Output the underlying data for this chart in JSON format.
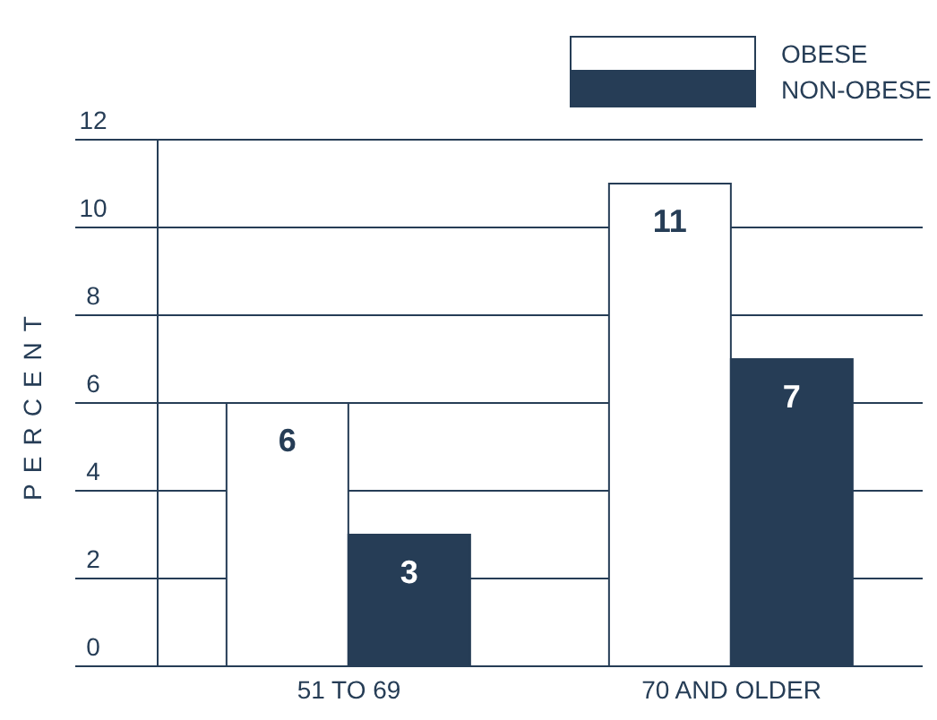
{
  "chart_data": {
    "type": "bar",
    "ylabel": "PERCENT",
    "categories": [
      "51 TO 69",
      "70 AND OLDER"
    ],
    "series": [
      {
        "name": "OBESE",
        "color": "#ffffff",
        "values": [
          6,
          11
        ]
      },
      {
        "name": "NON-OBESE",
        "color": "#263d56",
        "values": [
          3,
          7
        ]
      }
    ],
    "ylim": [
      0,
      12
    ],
    "yticks": [
      0,
      2,
      4,
      6,
      8,
      10,
      12
    ],
    "grid": "y",
    "legend": "top right",
    "data_labels": true
  }
}
